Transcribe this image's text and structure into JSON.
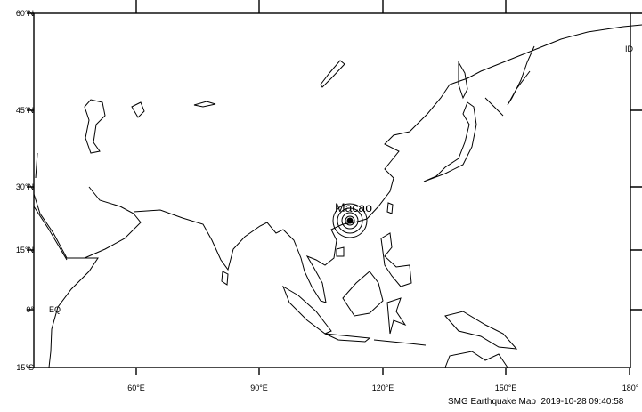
{
  "map": {
    "lat_labels": [
      "60°N",
      "45°N",
      "30°N",
      "15°N",
      "0°",
      "15°S"
    ],
    "lon_labels": [
      "60°E",
      "90°E",
      "120°E",
      "150°E",
      "180°"
    ],
    "equator_label": "EQ",
    "dateline_label": "ID",
    "epicenter": {
      "label": "Macao",
      "lat": 22.2,
      "lon": 113.5
    },
    "colors": {
      "coast": "#000000",
      "background": "#ffffff"
    }
  },
  "footer": {
    "title": "SMG Earthquake Map",
    "datetime": "2019-10-28 09:40:58"
  }
}
